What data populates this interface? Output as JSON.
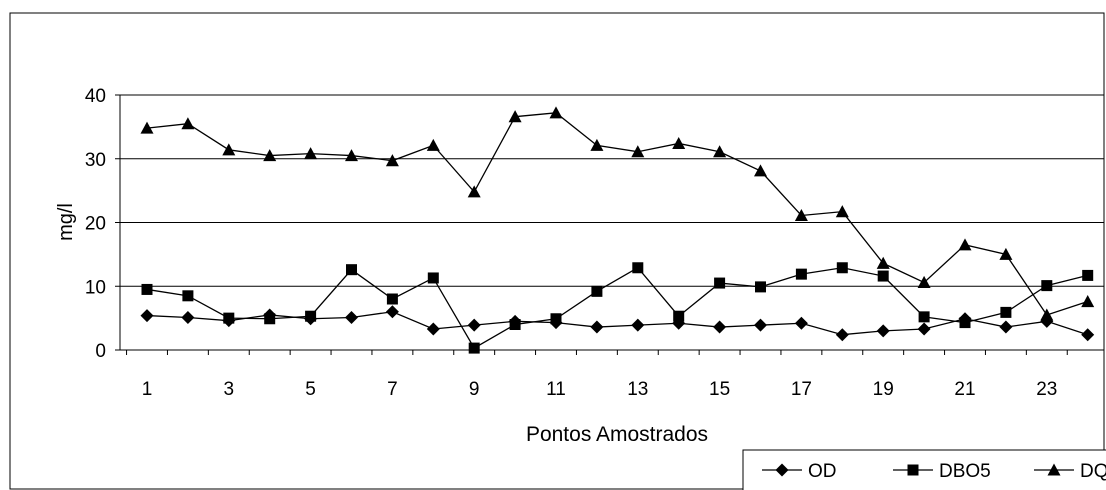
{
  "chart_data": {
    "type": "line",
    "title": "",
    "xlabel": "Pontos Amostrados",
    "ylabel": "mg/l",
    "x": [
      1,
      2,
      3,
      4,
      5,
      6,
      7,
      8,
      9,
      10,
      11,
      12,
      13,
      14,
      15,
      16,
      17,
      18,
      19,
      20,
      21,
      22,
      23,
      24
    ],
    "x_tick_labels": [
      "1",
      "3",
      "5",
      "7",
      "9",
      "11",
      "13",
      "15",
      "17",
      "19",
      "21",
      "23"
    ],
    "y_tick_labels": [
      "0",
      "10",
      "20",
      "30",
      "40"
    ],
    "ylim": [
      0,
      40
    ],
    "grid": "horizontal",
    "legend_position": "bottom-right",
    "series": [
      {
        "name": "OD",
        "marker": "diamond",
        "color": "#000000",
        "values": [
          5.4,
          5.1,
          4.6,
          5.5,
          4.9,
          5.1,
          6.0,
          3.3,
          3.9,
          4.5,
          4.3,
          3.6,
          3.9,
          4.2,
          3.6,
          3.9,
          4.2,
          2.4,
          3.0,
          3.3,
          4.9,
          3.6,
          4.5,
          2.4
        ]
      },
      {
        "name": "DBO5",
        "marker": "square",
        "color": "#000000",
        "values": [
          9.5,
          8.5,
          5.0,
          4.9,
          5.3,
          12.6,
          8.0,
          11.3,
          0.3,
          4.0,
          4.9,
          9.2,
          12.9,
          5.3,
          10.5,
          9.9,
          11.9,
          12.9,
          11.6,
          5.2,
          4.3,
          5.9,
          10.1,
          11.7
        ]
      },
      {
        "name": "DQO",
        "marker": "triangle",
        "color": "#000000",
        "values": [
          34.8,
          35.5,
          31.4,
          30.5,
          30.8,
          30.5,
          29.7,
          32.1,
          24.8,
          36.6,
          37.2,
          32.1,
          31.1,
          32.4,
          31.1,
          28.1,
          21.1,
          21.7,
          13.6,
          10.6,
          16.5,
          15.0,
          5.5,
          7.6
        ]
      }
    ]
  }
}
